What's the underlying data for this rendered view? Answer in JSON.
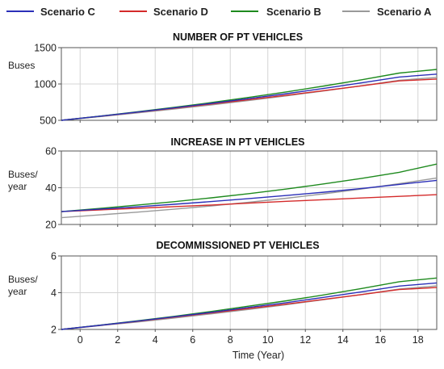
{
  "legend": [
    {
      "name": "Scenario C",
      "color": "#2b2fb8"
    },
    {
      "name": "Scenario D",
      "color": "#d42a2a"
    },
    {
      "name": "Scenario B",
      "color": "#1e8a1e"
    },
    {
      "name": "Scenario A",
      "color": "#9a9a9a"
    }
  ],
  "xlabel": "Time (Year)",
  "chart_data": [
    {
      "type": "line",
      "title": "NUMBER OF PT VEHICLES",
      "ylabel": [
        "Buses"
      ],
      "xlim": [
        -1,
        19
      ],
      "ylim": [
        500,
        1500
      ],
      "xticks": [
        0,
        2,
        4,
        6,
        8,
        10,
        12,
        14,
        16,
        18
      ],
      "yticks": [
        500,
        1000,
        1500
      ],
      "grid": true,
      "x": [
        -1,
        1,
        3,
        5,
        7,
        9,
        11,
        13,
        15,
        17,
        19
      ],
      "series": [
        {
          "name": "Scenario C",
          "values": [
            500,
            555,
            612,
            671,
            733,
            799,
            867,
            940,
            1016,
            1096,
            1135
          ]
        },
        {
          "name": "Scenario D",
          "values": [
            500,
            555,
            610,
            667,
            725,
            784,
            846,
            909,
            975,
            1042,
            1068
          ]
        },
        {
          "name": "Scenario B",
          "values": [
            500,
            556,
            616,
            678,
            745,
            816,
            891,
            972,
            1058,
            1150,
            1200
          ]
        },
        {
          "name": "Scenario A",
          "values": [
            500,
            549,
            601,
            655,
            712,
            773,
            837,
            905,
            976,
            1051,
            1090
          ]
        }
      ]
    },
    {
      "type": "line",
      "title": "INCREASE IN PT VEHICLES",
      "ylabel": [
        "Buses/",
        "year"
      ],
      "xlim": [
        -1,
        19
      ],
      "ylim": [
        20,
        60
      ],
      "xticks": [
        0,
        2,
        4,
        6,
        8,
        10,
        12,
        14,
        16,
        18
      ],
      "yticks": [
        20,
        40,
        60
      ],
      "grid": true,
      "x": [
        -1,
        1,
        3,
        5,
        7,
        9,
        11,
        13,
        15,
        17,
        19
      ],
      "series": [
        {
          "name": "Scenario C",
          "values": [
            27,
            28.3,
            29.6,
            31,
            32.5,
            34.1,
            35.8,
            37.6,
            39.6,
            41.8,
            44
          ]
        },
        {
          "name": "Scenario D",
          "values": [
            27,
            27.9,
            28.8,
            29.7,
            30.6,
            31.6,
            32.6,
            33.5,
            34.4,
            35.3,
            36.2
          ]
        },
        {
          "name": "Scenario B",
          "values": [
            27,
            28.7,
            30.5,
            32.4,
            34.5,
            36.8,
            39.3,
            42.1,
            45.1,
            48.4,
            52.9
          ]
        },
        {
          "name": "Scenario A",
          "values": [
            23.7,
            25.2,
            26.7,
            28.3,
            30.1,
            32.1,
            34.3,
            36.7,
            39.3,
            42.2,
            45.3
          ]
        }
      ]
    },
    {
      "type": "line",
      "title": "DECOMMISSIONED PT VEHICLES",
      "ylabel": [
        "Buses/",
        "year"
      ],
      "xlim": [
        -1,
        19
      ],
      "ylim": [
        2,
        6
      ],
      "xticks": [
        0,
        2,
        4,
        6,
        8,
        10,
        12,
        14,
        16,
        18
      ],
      "yticks": [
        2,
        4,
        6
      ],
      "grid": true,
      "x": [
        -1,
        1,
        3,
        5,
        7,
        9,
        11,
        13,
        15,
        17,
        19
      ],
      "series": [
        {
          "name": "Scenario C",
          "values": [
            2,
            2.22,
            2.45,
            2.69,
            2.93,
            3.2,
            3.46,
            3.75,
            4.05,
            4.36,
            4.53
          ]
        },
        {
          "name": "Scenario D",
          "values": [
            2,
            2.22,
            2.44,
            2.67,
            2.9,
            3.14,
            3.38,
            3.64,
            3.9,
            4.17,
            4.28
          ]
        },
        {
          "name": "Scenario B",
          "values": [
            2,
            2.23,
            2.46,
            2.71,
            2.98,
            3.27,
            3.56,
            3.88,
            4.23,
            4.6,
            4.8
          ]
        },
        {
          "name": "Scenario A",
          "values": [
            2,
            2.2,
            2.4,
            2.62,
            2.85,
            3.09,
            3.35,
            3.62,
            3.9,
            4.2,
            4.37
          ]
        }
      ]
    }
  ]
}
